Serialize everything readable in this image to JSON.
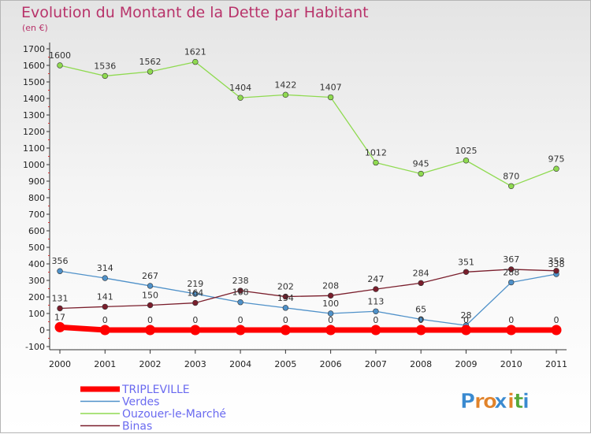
{
  "header": {
    "title": "Evolution du Montant de la Dette par Habitant",
    "unit": "(en €)"
  },
  "brand": {
    "logo_text": "Proxiti"
  },
  "chart_data": {
    "type": "line",
    "title": "Evolution du Montant de la Dette par Habitant",
    "ylabel": "(en €)",
    "xlabel": "",
    "x": [
      "2000",
      "2001",
      "2002",
      "2003",
      "2004",
      "2005",
      "2006",
      "2007",
      "2008",
      "2009",
      "2010",
      "2011"
    ],
    "yticks": [
      -100,
      0,
      100,
      200,
      300,
      400,
      500,
      600,
      700,
      800,
      900,
      1000,
      1100,
      1200,
      1300,
      1400,
      1500,
      1600,
      1700
    ],
    "ylim": [
      -100,
      1700
    ],
    "grid": false,
    "legend": "bottom-left",
    "series": [
      {
        "name": "TRIPLEVILLE",
        "color": "#ff0000",
        "values": [
          17,
          0,
          0,
          0,
          0,
          0,
          0,
          0,
          0,
          0,
          0,
          0
        ]
      },
      {
        "name": "Verdes",
        "color": "#4f91c9",
        "values": [
          356,
          314,
          267,
          219,
          168,
          134,
          100,
          113,
          65,
          28,
          288,
          338
        ]
      },
      {
        "name": "Ouzouer-le-Marché",
        "color": "#8fda50",
        "values": [
          1600,
          1536,
          1562,
          1621,
          1404,
          1422,
          1407,
          1012,
          945,
          1025,
          870,
          975
        ]
      },
      {
        "name": "Binas",
        "color": "#7a1e2c",
        "values": [
          131,
          141,
          150,
          164,
          238,
          202,
          208,
          247,
          284,
          351,
          367,
          358
        ]
      }
    ]
  }
}
